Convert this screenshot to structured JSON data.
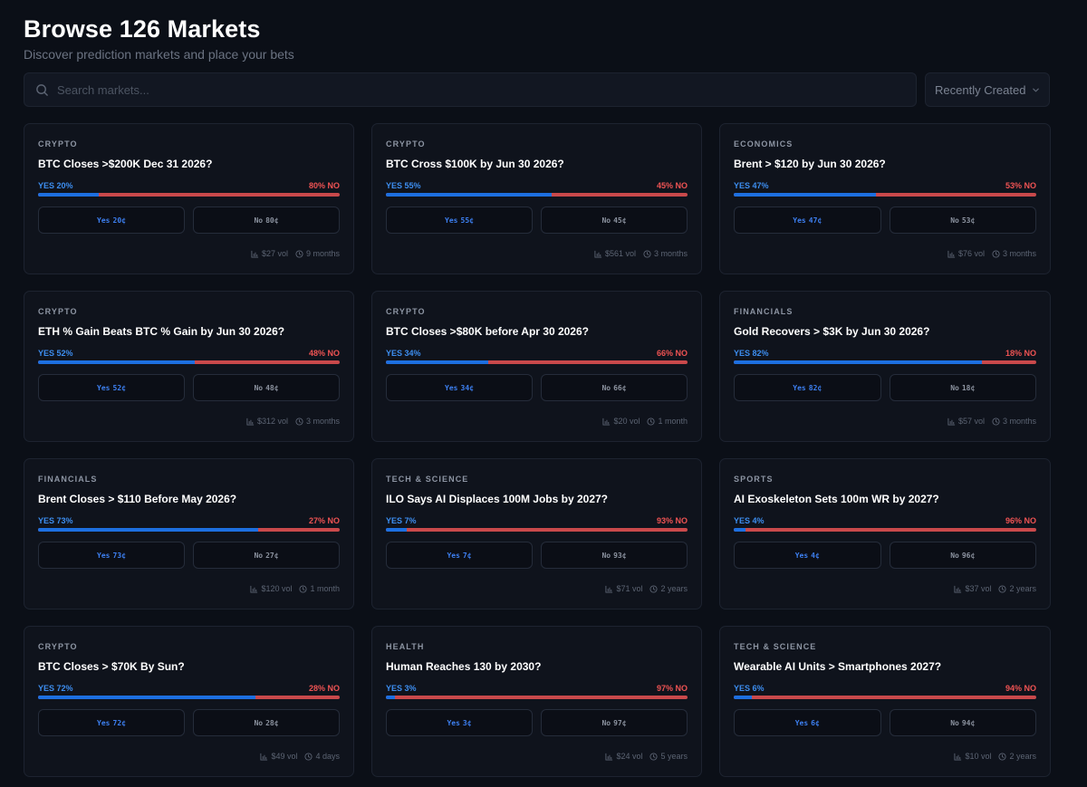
{
  "header": {
    "title": "Browse 126 Markets",
    "subtitle": "Discover prediction markets and place your bets"
  },
  "search": {
    "placeholder": "Search markets..."
  },
  "sort": {
    "selected": "Recently Created"
  },
  "markets": [
    {
      "category": "CRYPTO",
      "question": "BTC Closes >$200K Dec 31 2026?",
      "yes_pct_label": "YES 20%",
      "no_pct_label": "80% NO",
      "yes_fraction": 0.2,
      "yes_btn": "Yes",
      "yes_price": "20¢",
      "no_btn": "No",
      "no_price": "80¢",
      "volume": "$27 vol",
      "duration": "9 months"
    },
    {
      "category": "CRYPTO",
      "question": "BTC Cross $100K by Jun 30 2026?",
      "yes_pct_label": "YES 55%",
      "no_pct_label": "45% NO",
      "yes_fraction": 0.55,
      "yes_btn": "Yes",
      "yes_price": "55¢",
      "no_btn": "No",
      "no_price": "45¢",
      "volume": "$561 vol",
      "duration": "3 months"
    },
    {
      "category": "ECONOMICS",
      "question": "Brent > $120 by Jun 30 2026?",
      "yes_pct_label": "YES 47%",
      "no_pct_label": "53% NO",
      "yes_fraction": 0.47,
      "yes_btn": "Yes",
      "yes_price": "47¢",
      "no_btn": "No",
      "no_price": "53¢",
      "volume": "$76 vol",
      "duration": "3 months"
    },
    {
      "category": "CRYPTO",
      "question": "ETH % Gain Beats BTC % Gain by Jun 30 2026?",
      "yes_pct_label": "YES 52%",
      "no_pct_label": "48% NO",
      "yes_fraction": 0.52,
      "yes_btn": "Yes",
      "yes_price": "52¢",
      "no_btn": "No",
      "no_price": "48¢",
      "volume": "$312 vol",
      "duration": "3 months"
    },
    {
      "category": "CRYPTO",
      "question": "BTC Closes >$80K before Apr 30 2026?",
      "yes_pct_label": "YES 34%",
      "no_pct_label": "66% NO",
      "yes_fraction": 0.34,
      "yes_btn": "Yes",
      "yes_price": "34¢",
      "no_btn": "No",
      "no_price": "66¢",
      "volume": "$20 vol",
      "duration": "1 month"
    },
    {
      "category": "FINANCIALS",
      "question": "Gold Recovers > $3K by Jun 30 2026?",
      "yes_pct_label": "YES 82%",
      "no_pct_label": "18% NO",
      "yes_fraction": 0.82,
      "yes_btn": "Yes",
      "yes_price": "82¢",
      "no_btn": "No",
      "no_price": "18¢",
      "volume": "$57 vol",
      "duration": "3 months"
    },
    {
      "category": "FINANCIALS",
      "question": "Brent Closes > $110 Before May 2026?",
      "yes_pct_label": "YES 73%",
      "no_pct_label": "27% NO",
      "yes_fraction": 0.73,
      "yes_btn": "Yes",
      "yes_price": "73¢",
      "no_btn": "No",
      "no_price": "27¢",
      "volume": "$120 vol",
      "duration": "1 month"
    },
    {
      "category": "TECH & SCIENCE",
      "question": "ILO Says AI Displaces 100M Jobs by 2027?",
      "yes_pct_label": "YES 7%",
      "no_pct_label": "93% NO",
      "yes_fraction": 0.07,
      "yes_btn": "Yes",
      "yes_price": "7¢",
      "no_btn": "No",
      "no_price": "93¢",
      "volume": "$71 vol",
      "duration": "2 years"
    },
    {
      "category": "SPORTS",
      "question": "AI Exoskeleton Sets 100m WR by 2027?",
      "yes_pct_label": "YES 4%",
      "no_pct_label": "96% NO",
      "yes_fraction": 0.04,
      "yes_btn": "Yes",
      "yes_price": "4¢",
      "no_btn": "No",
      "no_price": "96¢",
      "volume": "$37 vol",
      "duration": "2 years"
    },
    {
      "category": "CRYPTO",
      "question": "BTC Closes > $70K By Sun?",
      "yes_pct_label": "YES 72%",
      "no_pct_label": "28% NO",
      "yes_fraction": 0.72,
      "yes_btn": "Yes",
      "yes_price": "72¢",
      "no_btn": "No",
      "no_price": "28¢",
      "volume": "$49 vol",
      "duration": "4 days"
    },
    {
      "category": "HEALTH",
      "question": "Human Reaches 130 by 2030?",
      "yes_pct_label": "YES 3%",
      "no_pct_label": "97% NO",
      "yes_fraction": 0.03,
      "yes_btn": "Yes",
      "yes_price": "3¢",
      "no_btn": "No",
      "no_price": "97¢",
      "volume": "$24 vol",
      "duration": "5 years"
    },
    {
      "category": "TECH & SCIENCE",
      "question": "Wearable AI Units > Smartphones 2027?",
      "yes_pct_label": "YES 6%",
      "no_pct_label": "94% NO",
      "yes_fraction": 0.06,
      "yes_btn": "Yes",
      "yes_price": "6¢",
      "no_btn": "No",
      "no_price": "94¢",
      "volume": "$10 vol",
      "duration": "2 years"
    }
  ],
  "colors": {
    "yes": "#1d6fe0",
    "no": "#c9494b",
    "background": "#0b0f17",
    "card": "#0f131c"
  },
  "icons": {
    "search": "search-icon",
    "sort": "chevron-down-icon",
    "volume": "bar-chart-icon",
    "duration": "clock-icon"
  }
}
